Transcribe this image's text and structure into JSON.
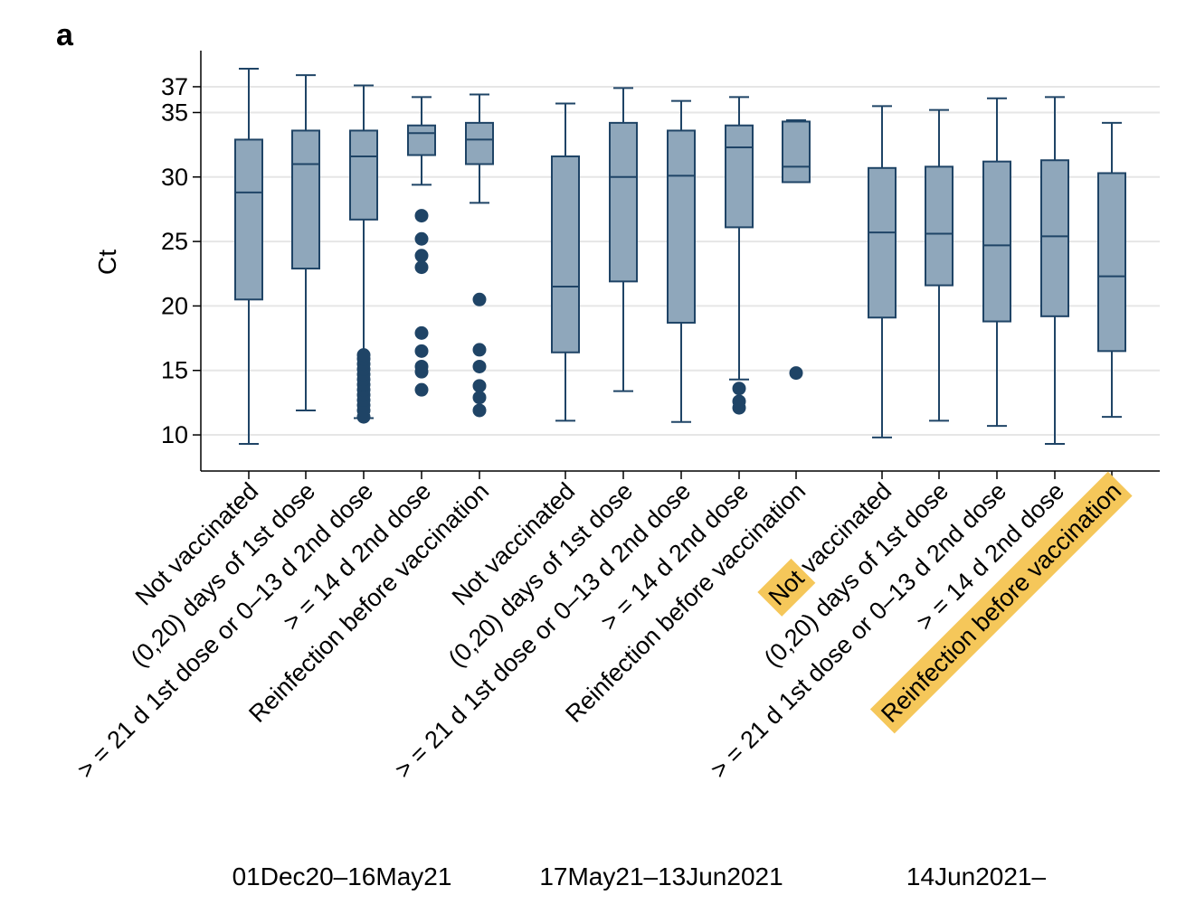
{
  "panel_letter": "a",
  "highlight_color": "#f5c75a",
  "chart_data": {
    "type": "box",
    "ylabel": "Ct",
    "ylim": [
      7.2,
      39.8
    ],
    "yticks": [
      10,
      15,
      20,
      25,
      30,
      35,
      37
    ],
    "grid": true,
    "box_fill": "#8fa7bb",
    "box_stroke": "#1f4466",
    "outlier_color": "#1f4466",
    "groups": [
      {
        "period": "01Dec20–16May21",
        "boxes": [
          {
            "label": "Not vaccinated",
            "whisker_low": 9.3,
            "q1": 20.5,
            "median": 28.8,
            "q3": 32.9,
            "whisker_high": 38.4,
            "outliers": []
          },
          {
            "label": "(0,20) days of 1st dose",
            "whisker_low": 11.9,
            "q1": 22.9,
            "median": 31.0,
            "q3": 33.6,
            "whisker_high": 37.9,
            "outliers": []
          },
          {
            "label": ">=21 d 1st dose or 0–13 d 2nd dose",
            "whisker_low": 11.3,
            "q1": 26.7,
            "median": 31.6,
            "q3": 33.6,
            "whisker_high": 37.1,
            "outliers": [
              11.4,
              11.9,
              12.3,
              12.7,
              13.1,
              13.5,
              13.9,
              14.3,
              14.7,
              15.1,
              15.5,
              15.9,
              16.2
            ]
          },
          {
            "label": ">=14 d 2nd dose",
            "whisker_low": 29.4,
            "q1": 31.7,
            "median": 33.4,
            "q3": 34.0,
            "whisker_high": 36.2,
            "outliers": [
              13.5,
              14.9,
              15.3,
              16.5,
              17.9,
              23.0,
              23.9,
              25.2,
              27.0
            ]
          },
          {
            "label": "Reinfection before vaccination",
            "whisker_low": 28.0,
            "q1": 31.0,
            "median": 32.9,
            "q3": 34.2,
            "whisker_high": 36.4,
            "outliers": [
              11.9,
              12.9,
              13.8,
              15.3,
              16.6,
              20.5
            ]
          }
        ]
      },
      {
        "period": "17May21–13Jun2021",
        "boxes": [
          {
            "label": "Not vaccinated",
            "whisker_low": 11.1,
            "q1": 16.4,
            "median": 21.5,
            "q3": 31.6,
            "whisker_high": 35.7,
            "outliers": []
          },
          {
            "label": "(0,20) days of 1st dose",
            "whisker_low": 13.4,
            "q1": 21.9,
            "median": 30.0,
            "q3": 34.2,
            "whisker_high": 36.9,
            "outliers": []
          },
          {
            "label": ">=21 d 1st dose or 0–13 d 2nd dose",
            "whisker_low": 11.0,
            "q1": 18.7,
            "median": 30.1,
            "q3": 33.6,
            "whisker_high": 35.9,
            "outliers": []
          },
          {
            "label": ">=14 d 2nd dose",
            "whisker_low": 14.3,
            "q1": 26.1,
            "median": 32.3,
            "q3": 34.0,
            "whisker_high": 36.2,
            "outliers": [
              12.1,
              12.6,
              13.6
            ]
          },
          {
            "label": "Reinfection before vaccination",
            "whisker_low": 29.6,
            "q1": 29.6,
            "median": 30.8,
            "q3": 34.3,
            "whisker_high": 34.4,
            "outliers": [
              14.8
            ]
          }
        ]
      },
      {
        "period": "14Jun2021–",
        "boxes": [
          {
            "label": "Not vaccinated",
            "whisker_low": 9.8,
            "q1": 19.1,
            "median": 25.7,
            "q3": 30.7,
            "whisker_high": 35.5,
            "outliers": []
          },
          {
            "label": "(0,20) days of 1st dose",
            "whisker_low": 11.1,
            "q1": 21.6,
            "median": 25.6,
            "q3": 30.8,
            "whisker_high": 35.2,
            "outliers": []
          },
          {
            "label": ">=21 d 1st dose or 0–13 d 2nd dose",
            "whisker_low": 10.7,
            "q1": 18.8,
            "median": 24.7,
            "q3": 31.2,
            "whisker_high": 36.1,
            "outliers": []
          },
          {
            "label": ">=14 d 2nd dose",
            "whisker_low": 9.3,
            "q1": 19.2,
            "median": 25.4,
            "q3": 31.3,
            "whisker_high": 36.2,
            "outliers": []
          },
          {
            "label": "Reinfection before vaccination",
            "whisker_low": 11.4,
            "q1": 16.5,
            "median": 22.3,
            "q3": 30.3,
            "whisker_high": 34.2,
            "outliers": []
          }
        ]
      }
    ],
    "highlighted_tick_labels": [
      {
        "group": 2,
        "box": 0,
        "text": "Not",
        "rest": " vaccinated"
      },
      {
        "group": 2,
        "box": 4,
        "text": "Reinfection before vaccination",
        "rest": ""
      }
    ]
  }
}
